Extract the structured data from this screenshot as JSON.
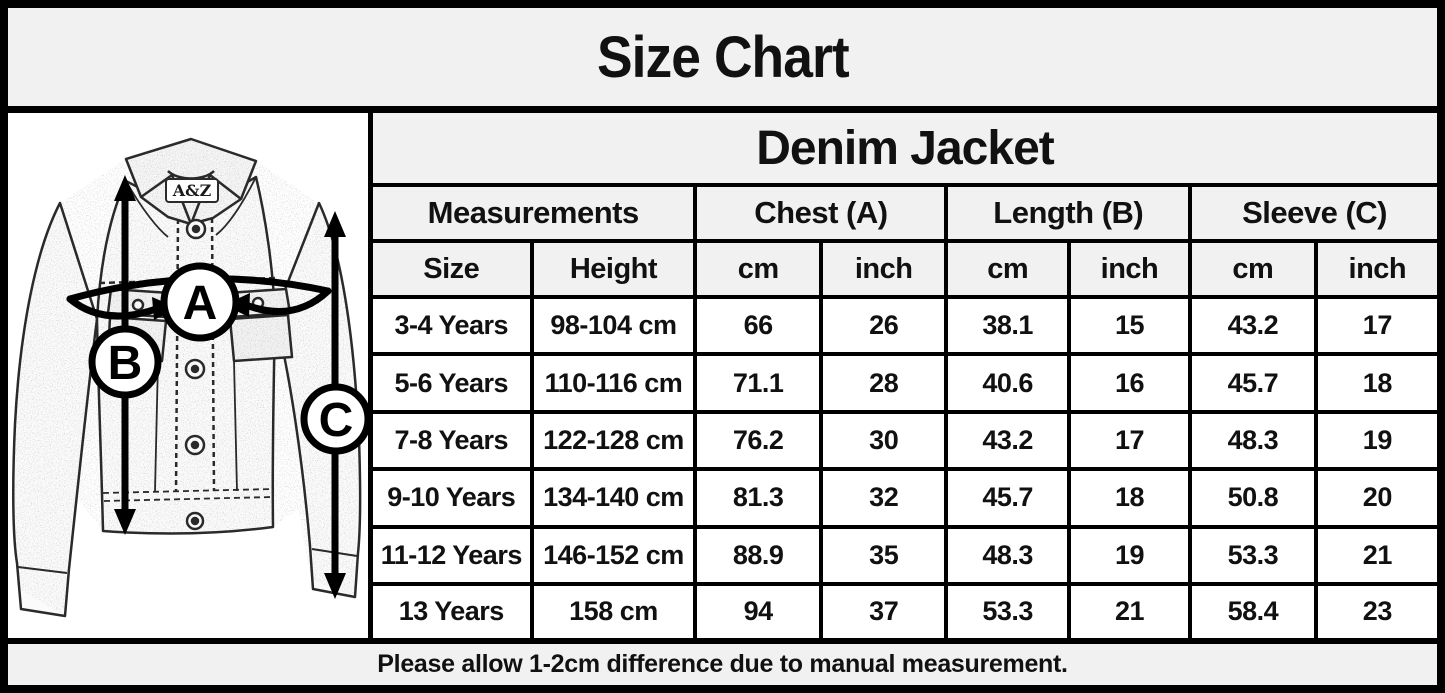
{
  "page": {
    "title": "Size Chart",
    "footer_note": "Please allow 1-2cm difference due to manual measurement."
  },
  "diagram": {
    "brand_label": "A&Z",
    "annotations": {
      "chest": "A",
      "length": "B",
      "sleeve": "C"
    }
  },
  "table": {
    "title": "Denim Jacket",
    "groups": [
      "Measurements",
      "Chest (A)",
      "Length (B)",
      "Sleeve (C)"
    ],
    "sub_headers": [
      "Size",
      "Height",
      "cm",
      "inch",
      "cm",
      "inch",
      "cm",
      "inch"
    ],
    "rows": [
      [
        "3-4 Years",
        "98-104 cm",
        "66",
        "26",
        "38.1",
        "15",
        "43.2",
        "17"
      ],
      [
        "5-6 Years",
        "110-116 cm",
        "71.1",
        "28",
        "40.6",
        "16",
        "45.7",
        "18"
      ],
      [
        "7-8 Years",
        "122-128 cm",
        "76.2",
        "30",
        "43.2",
        "17",
        "48.3",
        "19"
      ],
      [
        "9-10 Years",
        "134-140 cm",
        "81.3",
        "32",
        "45.7",
        "18",
        "50.8",
        "20"
      ],
      [
        "11-12 Years",
        "146-152 cm",
        "88.9",
        "35",
        "48.3",
        "19",
        "53.3",
        "21"
      ],
      [
        "13 Years",
        "158 cm",
        "94",
        "37",
        "53.3",
        "21",
        "58.4",
        "23"
      ]
    ]
  },
  "chart_data": {
    "type": "table",
    "title": "Denim Jacket",
    "column_groups": [
      "Measurements",
      "Chest (A)",
      "Length (B)",
      "Sleeve (C)"
    ],
    "columns": [
      "Size",
      "Height",
      "Chest cm",
      "Chest inch",
      "Length cm",
      "Length inch",
      "Sleeve cm",
      "Sleeve inch"
    ],
    "rows": [
      [
        "3-4 Years",
        "98-104 cm",
        66,
        26,
        38.1,
        15,
        43.2,
        17
      ],
      [
        "5-6 Years",
        "110-116 cm",
        71.1,
        28,
        40.6,
        16,
        45.7,
        18
      ],
      [
        "7-8 Years",
        "122-128 cm",
        76.2,
        30,
        43.2,
        17,
        48.3,
        19
      ],
      [
        "9-10 Years",
        "134-140 cm",
        81.3,
        32,
        45.7,
        18,
        50.8,
        20
      ],
      [
        "11-12 Years",
        "146-152 cm",
        88.9,
        35,
        48.3,
        19,
        53.3,
        21
      ],
      [
        "13 Years",
        "158 cm",
        94,
        37,
        53.3,
        21,
        58.4,
        23
      ]
    ],
    "footnote": "Please allow 1-2cm difference due to manual measurement."
  },
  "colors": {
    "background": "#f1f1f1",
    "border": "#000000",
    "cell": "#ffffff",
    "text": "#111111"
  }
}
